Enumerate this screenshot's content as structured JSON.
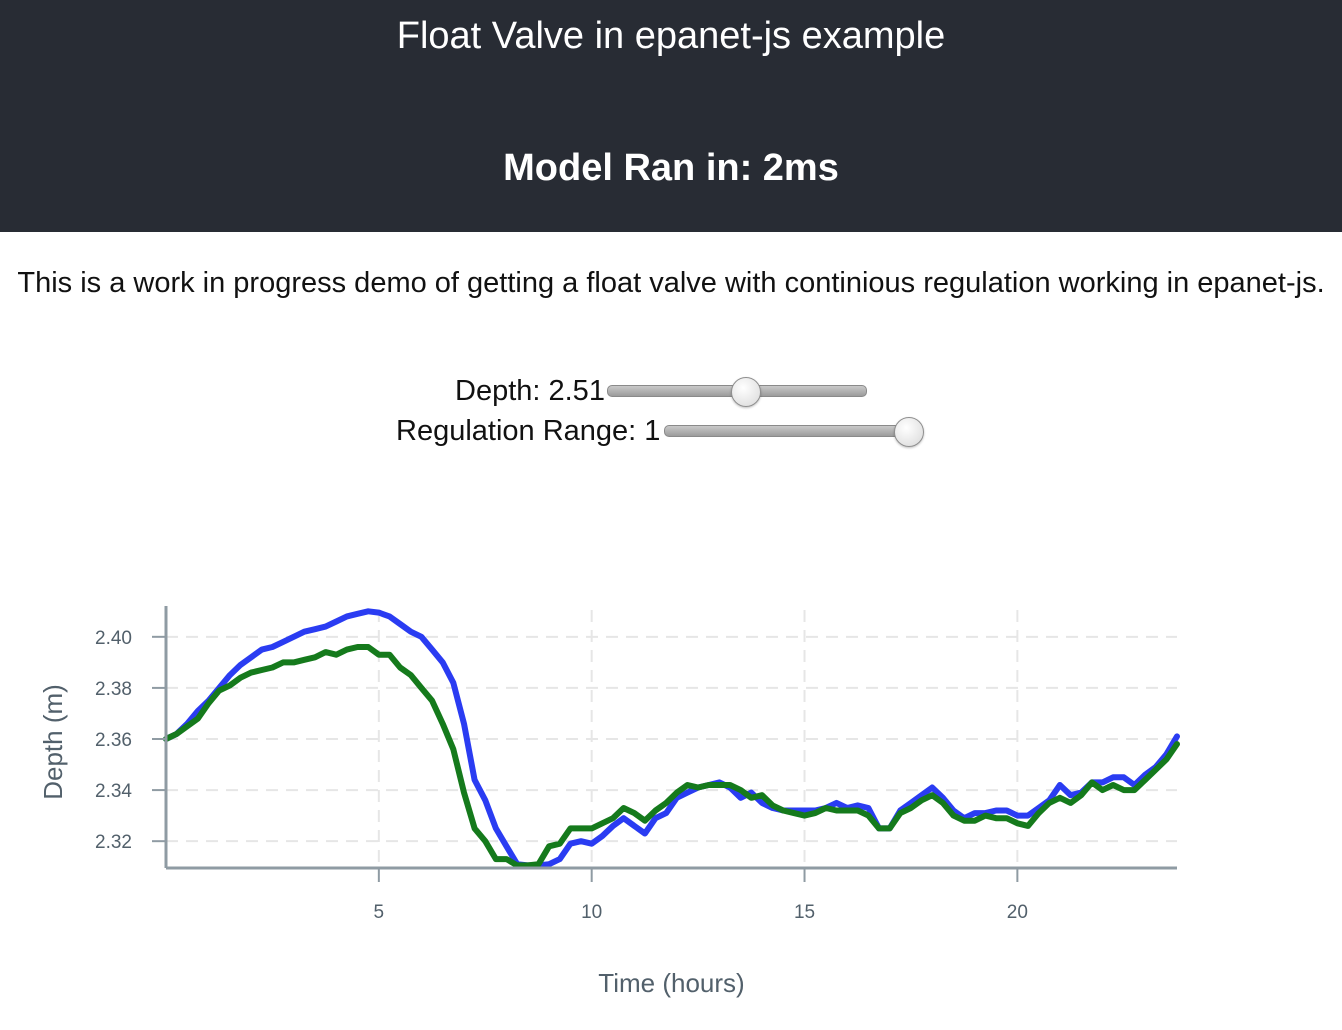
{
  "header": {
    "title": "Float Valve in epanet-js example",
    "run_time": "Model Ran in: 2ms"
  },
  "intro": {
    "text": "This is a work in progress demo of getting a float valve with continious regulation working in epanet-js."
  },
  "controls": {
    "depth": {
      "label": "Depth: 2.51",
      "value": 2.51,
      "fill_fraction": 0.53
    },
    "regulation_range": {
      "label": "Regulation Range: 1",
      "value": 1,
      "fill_fraction": 1.0
    }
  },
  "colors": {
    "header_bg": "#282c34",
    "series_blue": "#2a3cf2",
    "series_green": "#157a1c",
    "axis": "#8f9ba3",
    "grid": "#e6e6e6",
    "tick_text": "#52606b"
  },
  "chart_data": {
    "type": "line",
    "xlabel": "Time (hours)",
    "ylabel": "Depth (m)",
    "xlim": [
      0,
      23.75
    ],
    "ylim": [
      2.3095,
      2.4105
    ],
    "x_ticks": [
      5,
      10,
      15,
      20
    ],
    "y_ticks": [
      2.32,
      2.34,
      2.36,
      2.38,
      2.4
    ],
    "x_tick_labels": [
      "5",
      "10",
      "15",
      "20"
    ],
    "y_tick_labels": [
      "2.32",
      "2.34",
      "2.36",
      "2.38",
      "2.40"
    ],
    "grid": true,
    "legend": "none",
    "x": [
      0,
      0.25,
      0.5,
      0.75,
      1,
      1.25,
      1.5,
      1.75,
      2,
      2.25,
      2.5,
      2.75,
      3,
      3.25,
      3.5,
      3.75,
      4,
      4.25,
      4.5,
      4.75,
      5,
      5.25,
      5.5,
      5.75,
      6,
      6.25,
      6.5,
      6.75,
      7,
      7.25,
      7.5,
      7.75,
      8,
      8.25,
      8.5,
      8.75,
      9,
      9.25,
      9.5,
      9.75,
      10,
      10.25,
      10.5,
      10.75,
      11,
      11.25,
      11.5,
      11.75,
      12,
      12.25,
      12.5,
      12.75,
      13,
      13.25,
      13.5,
      13.75,
      14,
      14.25,
      14.5,
      14.75,
      15,
      15.25,
      15.5,
      15.75,
      16,
      16.25,
      16.5,
      16.75,
      17,
      17.25,
      17.5,
      17.75,
      18,
      18.25,
      18.5,
      18.75,
      19,
      19.25,
      19.5,
      19.75,
      20,
      20.25,
      20.5,
      20.75,
      21,
      21.25,
      21.5,
      21.75,
      22,
      22.25,
      22.5,
      22.75,
      23,
      23.25,
      23.5,
      23.75
    ],
    "series": [
      {
        "color": "#2a3cf2",
        "values": [
          2.36,
          2.362,
          2.366,
          2.371,
          2.375,
          2.38,
          2.385,
          2.389,
          2.392,
          2.395,
          2.396,
          2.398,
          2.4,
          2.402,
          2.403,
          2.404,
          2.406,
          2.408,
          2.409,
          2.41,
          2.4095,
          2.408,
          2.405,
          2.402,
          2.4,
          2.395,
          2.39,
          2.382,
          2.366,
          2.344,
          2.336,
          2.325,
          2.318,
          2.311,
          2.3105,
          2.3105,
          2.311,
          2.313,
          2.319,
          2.32,
          2.319,
          2.322,
          2.326,
          2.329,
          2.326,
          2.323,
          2.329,
          2.331,
          2.337,
          2.339,
          2.341,
          2.342,
          2.343,
          2.341,
          2.337,
          2.339,
          2.335,
          2.333,
          2.332,
          2.332,
          2.332,
          2.332,
          2.333,
          2.335,
          2.333,
          2.334,
          2.333,
          2.325,
          2.325,
          2.332,
          2.335,
          2.338,
          2.341,
          2.337,
          2.332,
          2.329,
          2.331,
          2.331,
          2.332,
          2.332,
          2.33,
          2.33,
          2.333,
          2.336,
          2.342,
          2.338,
          2.339,
          2.343,
          2.343,
          2.345,
          2.345,
          2.342,
          2.346,
          2.349,
          2.354,
          2.361
        ]
      },
      {
        "color": "#157a1c",
        "values": [
          2.36,
          2.362,
          2.365,
          2.368,
          2.374,
          2.379,
          2.381,
          2.384,
          2.386,
          2.387,
          2.388,
          2.39,
          2.39,
          2.391,
          2.392,
          2.394,
          2.393,
          2.395,
          2.396,
          2.396,
          2.393,
          2.393,
          2.388,
          2.385,
          2.38,
          2.375,
          2.366,
          2.356,
          2.339,
          2.325,
          2.32,
          2.313,
          2.313,
          2.3105,
          2.3105,
          2.311,
          2.318,
          2.319,
          2.325,
          2.325,
          2.325,
          2.327,
          2.329,
          2.333,
          2.331,
          2.328,
          2.332,
          2.335,
          2.339,
          2.342,
          2.341,
          2.342,
          2.342,
          2.342,
          2.34,
          2.337,
          2.338,
          2.334,
          2.332,
          2.331,
          2.33,
          2.331,
          2.333,
          2.332,
          2.332,
          2.332,
          2.33,
          2.325,
          2.325,
          2.331,
          2.333,
          2.336,
          2.338,
          2.335,
          2.33,
          2.328,
          2.328,
          2.33,
          2.329,
          2.329,
          2.327,
          2.326,
          2.331,
          2.335,
          2.337,
          2.335,
          2.338,
          2.343,
          2.34,
          2.342,
          2.34,
          2.34,
          2.344,
          2.348,
          2.352,
          2.358
        ]
      }
    ]
  }
}
